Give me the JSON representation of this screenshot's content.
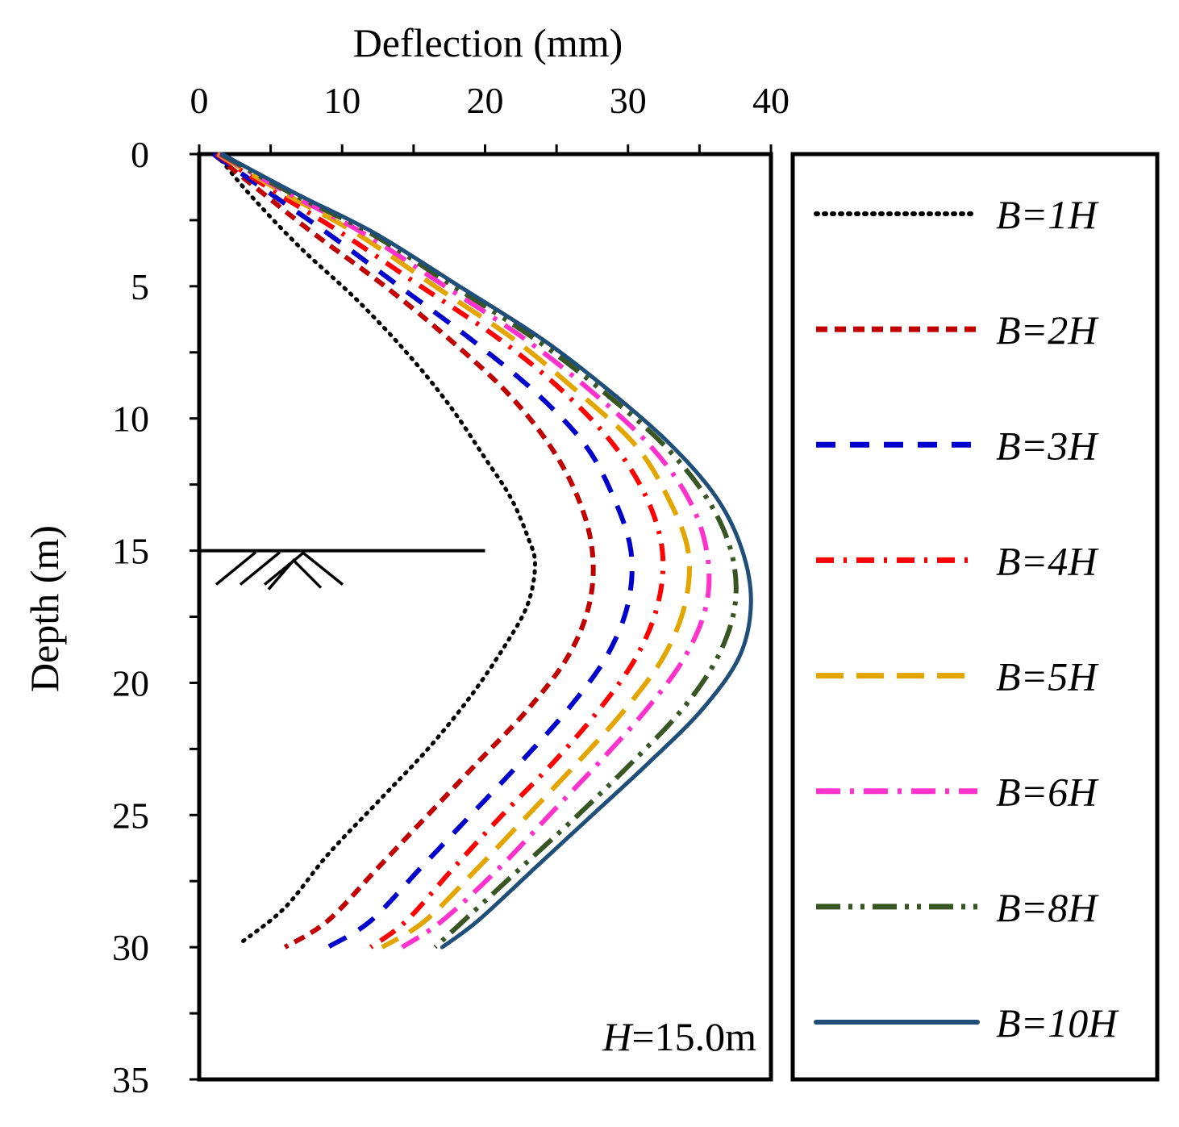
{
  "chart_data": {
    "type": "line",
    "title": "",
    "xlabel": "Deflection (mm)",
    "ylabel": "Depth (m)",
    "xlim": [
      0,
      40
    ],
    "ylim": [
      0,
      35
    ],
    "y_inverted": true,
    "x_axis_position": "top",
    "x_ticks": [
      0,
      10,
      20,
      30,
      40
    ],
    "y_ticks": [
      0,
      5,
      10,
      15,
      20,
      25,
      30,
      35
    ],
    "grid": false,
    "legend_position": "right, outside plot",
    "annotation": {
      "italic": "H",
      "text": "=15.0m"
    },
    "excavation_depth": 15,
    "series": [
      {
        "name": "B=1H",
        "color": "#000000",
        "dash": "dotted",
        "x": [
          1.2,
          3.5,
          7,
          11,
          14.5,
          17.5,
          20,
          21.8,
          23,
          23.5,
          23,
          21.5,
          19,
          16,
          12.5,
          9,
          6,
          3
        ],
        "y": [
          0,
          1.5,
          3.5,
          5.5,
          7.5,
          9.5,
          11.5,
          13,
          14.5,
          15.5,
          17,
          18.5,
          20.5,
          22.5,
          24.5,
          26.5,
          28.5,
          29.8
        ]
      },
      {
        "name": "B=2H",
        "color": "#C00000",
        "dash": "short-dash",
        "x": [
          1,
          4.5,
          8,
          13,
          17.5,
          21.5,
          24.5,
          26.5,
          27.5,
          27.3,
          25.8,
          23,
          19.5,
          16,
          12.5,
          9,
          6
        ],
        "y": [
          0,
          1.5,
          3,
          5,
          7,
          9,
          11,
          13,
          15,
          17,
          19,
          21,
          23,
          25,
          27,
          29,
          30
        ]
      },
      {
        "name": "B=3H",
        "color": "#0000CC",
        "dash": "dash",
        "x": [
          1,
          5,
          9,
          14,
          19,
          23.5,
          27,
          29,
          30.2,
          30,
          28.5,
          25.8,
          22.5,
          19,
          15.5,
          12,
          9
        ],
        "y": [
          0,
          1.5,
          3,
          5,
          7,
          9,
          11,
          13,
          15,
          17,
          19,
          21,
          23,
          25,
          27,
          29,
          30
        ]
      },
      {
        "name": "B=4H",
        "color": "#FF0000",
        "dash": "dash-dot",
        "x": [
          1.2,
          5.5,
          10,
          15.5,
          21,
          25.5,
          29,
          31.3,
          32.4,
          32.1,
          30.6,
          28,
          24.8,
          21.2,
          17.8,
          14.5,
          12
        ],
        "y": [
          0,
          1.5,
          3,
          5,
          7,
          9,
          11,
          13,
          15,
          17,
          19,
          21,
          23,
          25,
          27,
          29,
          30
        ]
      },
      {
        "name": "B=5H",
        "color": "#E3A600",
        "dash": "long-dash",
        "x": [
          1.3,
          6,
          11,
          16.5,
          22,
          26.5,
          30.5,
          32.8,
          34.2,
          34,
          32.5,
          29.8,
          26.5,
          23,
          19.5,
          15.8,
          12.8
        ],
        "y": [
          0,
          1.5,
          3,
          5,
          7,
          9,
          11,
          13,
          15,
          17,
          19,
          21,
          23,
          25,
          27,
          29,
          30
        ]
      },
      {
        "name": "B=6H",
        "color": "#FF33CC",
        "dash": "long-dash-dot",
        "x": [
          1.4,
          6.3,
          11.5,
          17.2,
          22.8,
          27.5,
          31.5,
          34.2,
          35.5,
          35.5,
          34,
          31.3,
          28,
          24.5,
          21,
          17,
          14.2
        ],
        "y": [
          0,
          1.5,
          3,
          5,
          7,
          9,
          11,
          13,
          15,
          17,
          19,
          21,
          23,
          25,
          27,
          29,
          30
        ]
      },
      {
        "name": "B=8H",
        "color": "#375623",
        "dash": "long-dash-dot-dot",
        "x": [
          1.5,
          6.5,
          12,
          17.8,
          23.5,
          28.3,
          32.5,
          35.5,
          37.2,
          37.5,
          36.3,
          33.8,
          30.3,
          26.5,
          22.5,
          18.5,
          16.5
        ],
        "y": [
          0,
          1.5,
          3,
          5,
          7,
          9,
          11,
          13,
          15,
          17,
          19,
          21,
          23,
          25,
          27,
          29,
          30
        ]
      },
      {
        "name": "B=10H",
        "color": "#1F4E79",
        "dash": "solid",
        "x": [
          1.6,
          6.8,
          12.3,
          18.2,
          24,
          28.8,
          33,
          36.2,
          38,
          38.6,
          37.8,
          35.2,
          31.5,
          27.5,
          23.5,
          19.5,
          17
        ],
        "y": [
          0,
          1.5,
          3,
          5,
          7,
          9,
          11,
          13,
          15,
          17,
          19,
          21,
          23,
          25,
          27,
          29,
          30
        ]
      }
    ]
  }
}
